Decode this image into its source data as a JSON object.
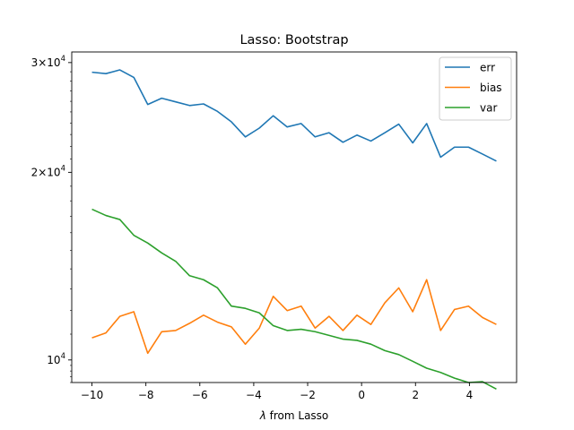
{
  "chart_data": {
    "type": "line",
    "title": "Lasso: Bootstrap",
    "xlabel_prefix": "λ",
    "xlabel_rest": " from Lasso",
    "ylabel": "",
    "yscale": "log",
    "xlim": [
      -10.75,
      5.75
    ],
    "ylim": [
      9200,
      31200
    ],
    "x_ticks": [
      -10,
      -8,
      -6,
      -4,
      -2,
      0,
      2,
      4
    ],
    "x_tick_labels": [
      "−10",
      "−8",
      "−6",
      "−4",
      "−2",
      "0",
      "2",
      "4"
    ],
    "y_ticks": [
      {
        "value": 10000,
        "mantissa": "",
        "exponent": "10",
        "label": "10^4"
      },
      {
        "value": 20000,
        "mantissa": "2",
        "exponent": "10",
        "label": "2×10^4"
      },
      {
        "value": 30000,
        "mantissa": "3",
        "exponent": "10",
        "label": "3×10^4"
      }
    ],
    "legend_position": "top-right",
    "grid": false,
    "x": [
      -10,
      -9.483,
      -8.966,
      -8.448,
      -7.931,
      -7.414,
      -6.897,
      -6.379,
      -5.862,
      -5.345,
      -4.828,
      -4.31,
      -3.793,
      -3.276,
      -2.759,
      -2.241,
      -1.724,
      -1.207,
      -0.69,
      -0.172,
      0.345,
      0.862,
      1.379,
      1.897,
      2.414,
      2.931,
      3.448,
      3.966,
      4.483,
      5
    ],
    "series": [
      {
        "name": "err",
        "color": "#1f77b4",
        "values": [
          28950,
          28800,
          29200,
          28400,
          25700,
          26300,
          25950,
          25600,
          25750,
          25050,
          24100,
          22800,
          23550,
          24650,
          23650,
          23950,
          22800,
          23150,
          22350,
          22950,
          22450,
          23150,
          23900,
          22300,
          23950,
          21150,
          21950,
          21950,
          21400,
          20850
        ]
      },
      {
        "name": "bias",
        "color": "#ff7f0e",
        "values": [
          10850,
          11050,
          11750,
          11950,
          10250,
          11100,
          11150,
          11450,
          11800,
          11500,
          11300,
          10600,
          11250,
          12650,
          12000,
          12200,
          11250,
          11750,
          11150,
          11800,
          11400,
          12350,
          13050,
          11950,
          13450,
          11150,
          12050,
          12200,
          11700,
          11400
        ]
      },
      {
        "name": "var",
        "color": "#2ca02c",
        "values": [
          17450,
          17050,
          16800,
          15850,
          15400,
          14850,
          14400,
          13650,
          13450,
          13050,
          12200,
          12100,
          11900,
          11350,
          11150,
          11200,
          11100,
          10950,
          10800,
          10750,
          10600,
          10350,
          10200,
          9950,
          9700,
          9550,
          9350,
          9200,
          9230,
          8980
        ]
      }
    ]
  }
}
